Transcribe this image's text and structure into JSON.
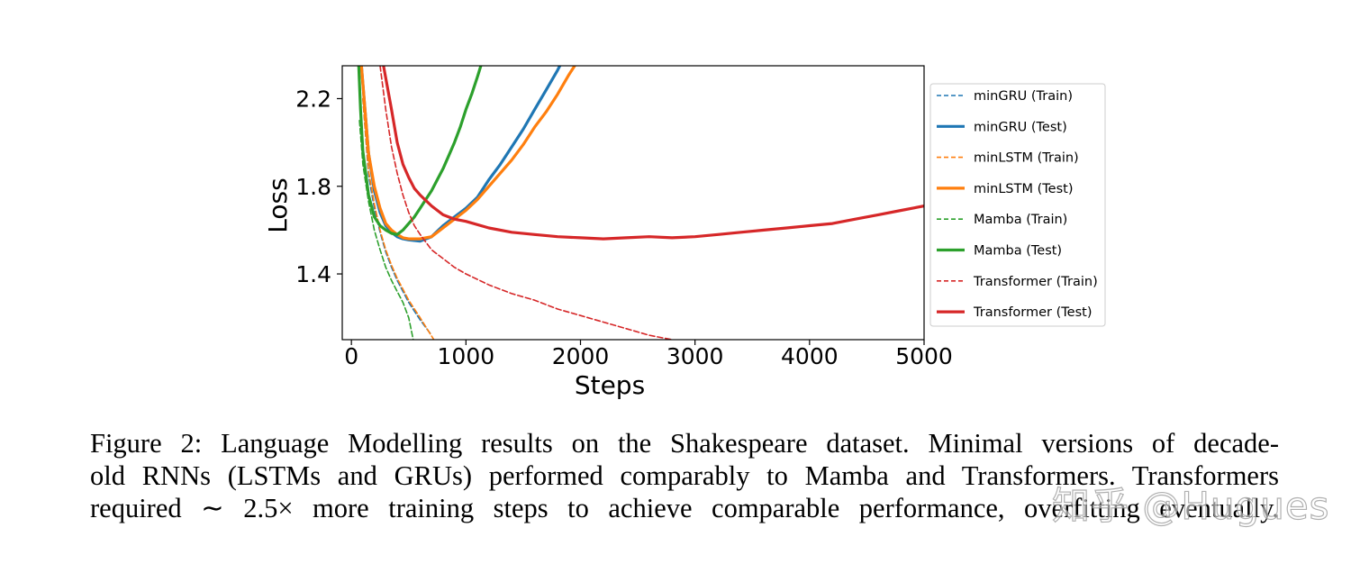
{
  "chart_data": {
    "type": "line",
    "title": "",
    "xlabel": "Steps",
    "ylabel": "Loss",
    "xlim": [
      -80,
      5000
    ],
    "ylim": [
      1.1,
      2.35
    ],
    "xticks": [
      0,
      1000,
      2000,
      3000,
      4000,
      5000
    ],
    "xtick_labels": [
      "0",
      "1000",
      "2000",
      "3000",
      "4000",
      "5000"
    ],
    "yticks": [
      1.4,
      1.8,
      2.2
    ],
    "ytick_labels": [
      "1.4",
      "1.8",
      "2.2"
    ],
    "grid": false,
    "legend_position": "outside-right",
    "series": [
      {
        "name": "minGRU (Train)",
        "color": "#1f77b4",
        "style": "dashed",
        "x": [
          100,
          150,
          200,
          250,
          300,
          350,
          400,
          500,
          600,
          700
        ],
        "y": [
          2.2,
          1.85,
          1.7,
          1.59,
          1.5,
          1.43,
          1.37,
          1.27,
          1.19,
          1.12
        ]
      },
      {
        "name": "minGRU (Test)",
        "color": "#1f77b4",
        "style": "solid",
        "x": [
          80,
          150,
          200,
          250,
          300,
          350,
          400,
          450,
          500,
          600,
          700,
          800,
          900,
          1000,
          1100,
          1200,
          1300,
          1400,
          1500,
          1600,
          1700,
          1800,
          1820
        ],
        "y": [
          2.4,
          1.95,
          1.78,
          1.68,
          1.62,
          1.59,
          1.57,
          1.56,
          1.555,
          1.55,
          1.57,
          1.62,
          1.66,
          1.7,
          1.75,
          1.83,
          1.9,
          1.98,
          2.06,
          2.15,
          2.24,
          2.33,
          2.35
        ]
      },
      {
        "name": "minLSTM (Train)",
        "color": "#ff7f0e",
        "style": "dashed",
        "x": [
          100,
          150,
          200,
          250,
          300,
          350,
          400,
          500,
          600,
          720
        ],
        "y": [
          2.2,
          1.87,
          1.72,
          1.6,
          1.51,
          1.44,
          1.38,
          1.28,
          1.2,
          1.1
        ]
      },
      {
        "name": "minLSTM (Test)",
        "color": "#ff7f0e",
        "style": "solid",
        "x": [
          80,
          150,
          200,
          250,
          300,
          350,
          400,
          450,
          500,
          600,
          700,
          800,
          900,
          1000,
          1100,
          1200,
          1300,
          1400,
          1500,
          1600,
          1700,
          1800,
          1900,
          1950
        ],
        "y": [
          2.4,
          1.95,
          1.8,
          1.7,
          1.63,
          1.6,
          1.58,
          1.565,
          1.56,
          1.56,
          1.57,
          1.61,
          1.65,
          1.69,
          1.74,
          1.8,
          1.86,
          1.92,
          1.99,
          2.07,
          2.14,
          2.22,
          2.31,
          2.35
        ]
      },
      {
        "name": "Mamba (Train)",
        "color": "#2ca02c",
        "style": "dashed",
        "x": [
          70,
          100,
          150,
          200,
          250,
          300,
          350,
          400,
          450,
          500,
          540
        ],
        "y": [
          2.1,
          1.9,
          1.73,
          1.6,
          1.51,
          1.43,
          1.37,
          1.32,
          1.27,
          1.2,
          1.1
        ]
      },
      {
        "name": "Mamba (Test)",
        "color": "#2ca02c",
        "style": "solid",
        "x": [
          60,
          80,
          100,
          150,
          200,
          250,
          300,
          350,
          400,
          450,
          500,
          550,
          600,
          650,
          700,
          750,
          800,
          850,
          900,
          950,
          1000,
          1050,
          1100,
          1130
        ],
        "y": [
          2.4,
          2.15,
          1.96,
          1.76,
          1.66,
          1.62,
          1.6,
          1.585,
          1.58,
          1.6,
          1.63,
          1.66,
          1.7,
          1.74,
          1.78,
          1.83,
          1.88,
          1.94,
          2.0,
          2.07,
          2.15,
          2.22,
          2.3,
          2.35
        ]
      },
      {
        "name": "Transformer (Train)",
        "color": "#d62728",
        "style": "dashed",
        "x": [
          250,
          300,
          350,
          400,
          450,
          500,
          550,
          600,
          700,
          800,
          900,
          1000,
          1200,
          1400,
          1600,
          1800,
          2000,
          2200,
          2400,
          2600,
          2800
        ],
        "y": [
          2.35,
          2.15,
          1.98,
          1.86,
          1.76,
          1.68,
          1.62,
          1.58,
          1.51,
          1.47,
          1.43,
          1.4,
          1.35,
          1.31,
          1.28,
          1.24,
          1.21,
          1.18,
          1.15,
          1.12,
          1.1
        ]
      },
      {
        "name": "Transformer (Test)",
        "color": "#d62728",
        "style": "solid",
        "x": [
          280,
          350,
          400,
          450,
          500,
          550,
          600,
          700,
          800,
          900,
          1000,
          1200,
          1400,
          1600,
          1800,
          2000,
          2200,
          2400,
          2600,
          2800,
          3000,
          3200,
          3400,
          3600,
          3800,
          4000,
          4200,
          4400,
          4600,
          4800,
          5000
        ],
        "y": [
          2.35,
          2.15,
          2.0,
          1.9,
          1.84,
          1.79,
          1.76,
          1.71,
          1.67,
          1.65,
          1.64,
          1.61,
          1.59,
          1.58,
          1.57,
          1.565,
          1.56,
          1.565,
          1.57,
          1.565,
          1.57,
          1.58,
          1.59,
          1.6,
          1.61,
          1.62,
          1.63,
          1.65,
          1.67,
          1.69,
          1.71
        ]
      }
    ]
  },
  "caption": {
    "line1": "Figure 2:  Language Modelling results on the Shakespeare dataset.  Minimal versions of decade-",
    "line2": "old RNNs (LSTMs and GRUs) performed comparably to Mamba and Transformers. Transformers",
    "line3": "required ∼ 2.5× more training steps to achieve comparable performance, overfitting eventually."
  },
  "watermark": "知乎 @Hugues"
}
